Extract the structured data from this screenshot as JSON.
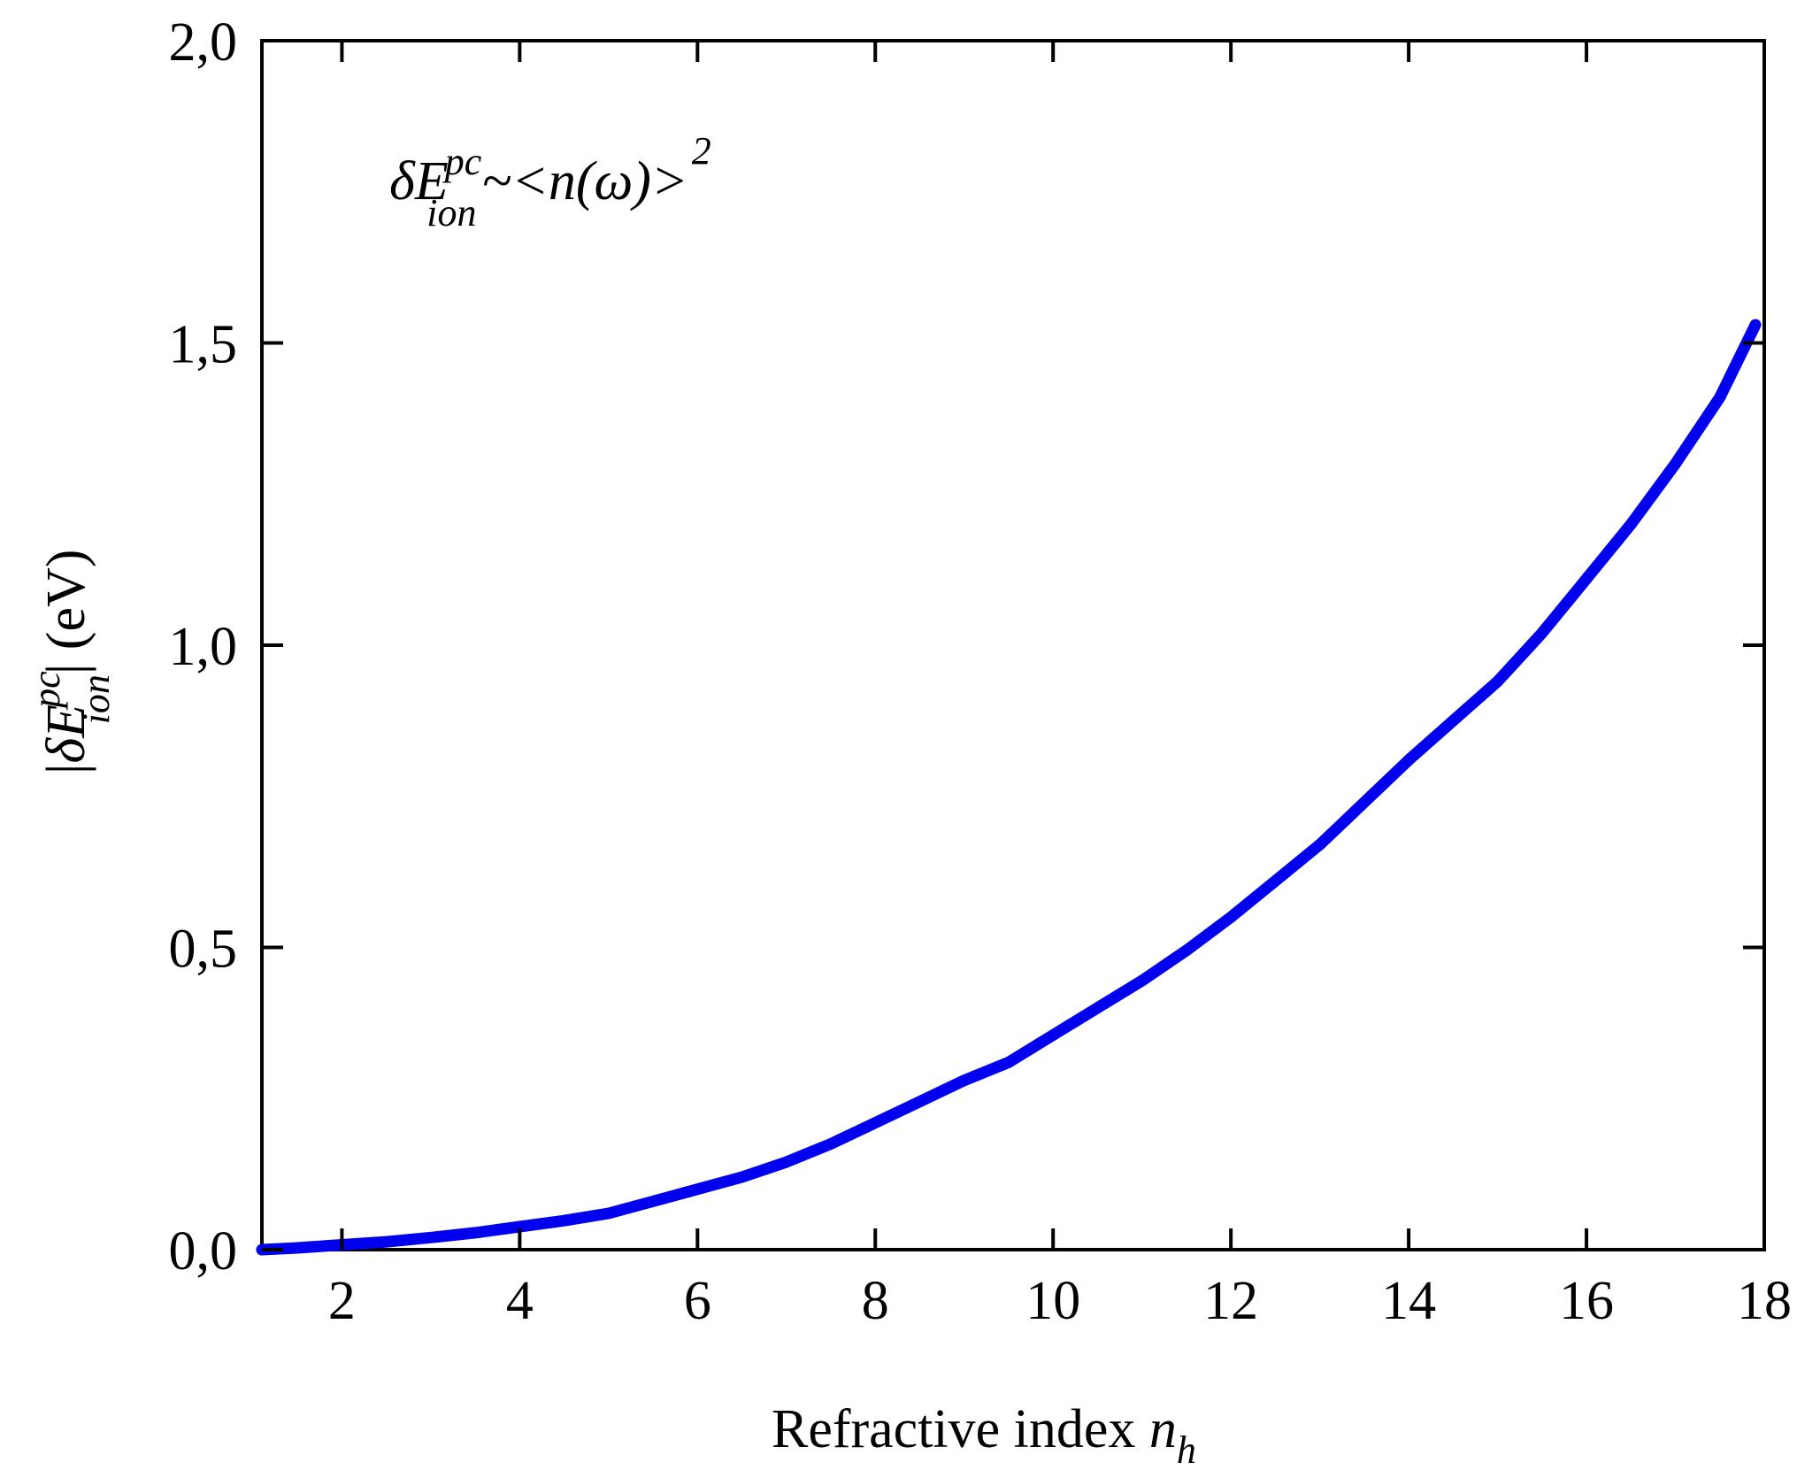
{
  "chart_data": {
    "type": "line",
    "xlabel": "Refractive index ",
    "xlabel_var": "n",
    "xlabel_sub": "h",
    "ylabel_prefix": "|",
    "ylabel_var": "δE",
    "ylabel_sup": "pc",
    "ylabel_sub": "ion",
    "ylabel_suffix": "| (eV)",
    "annotation": {
      "var": "δE",
      "sup": "pc",
      "sub": "ion",
      "rest": "~<n(ω)>",
      "exp": "2"
    },
    "xlim": [
      1.1,
      18
    ],
    "ylim": [
      0,
      2.0
    ],
    "x_ticks": [
      2,
      4,
      6,
      8,
      10,
      12,
      14,
      16,
      18
    ],
    "x_tick_labels": [
      "2",
      "4",
      "6",
      "8",
      "10",
      "12",
      "14",
      "16",
      "18"
    ],
    "y_ticks": [
      0,
      0.5,
      1.0,
      1.5,
      2.0
    ],
    "y_tick_labels": [
      "0,0",
      "0,5",
      "1,0",
      "1,5",
      "2,0"
    ],
    "grid": false,
    "series": [
      {
        "color": "#0000ee",
        "x": [
          1.1,
          1.5,
          2.0,
          2.5,
          3.0,
          3.5,
          4.0,
          4.5,
          5.0,
          5.5,
          6.0,
          6.5,
          7.0,
          7.5,
          8.0,
          8.5,
          9.0,
          9.5,
          10.0,
          10.5,
          11.0,
          11.5,
          12.0,
          12.5,
          13.0,
          13.5,
          14.0,
          14.5,
          15.0,
          15.5,
          16.0,
          16.5,
          17.0,
          17.5,
          17.9
        ],
        "y": [
          0.0,
          0.003,
          0.008,
          0.013,
          0.02,
          0.028,
          0.038,
          0.048,
          0.06,
          0.08,
          0.1,
          0.12,
          0.145,
          0.175,
          0.21,
          0.245,
          0.28,
          0.31,
          0.355,
          0.4,
          0.445,
          0.495,
          0.55,
          0.61,
          0.67,
          0.74,
          0.81,
          0.875,
          0.94,
          1.02,
          1.11,
          1.2,
          1.3,
          1.41,
          1.53
        ]
      }
    ]
  }
}
